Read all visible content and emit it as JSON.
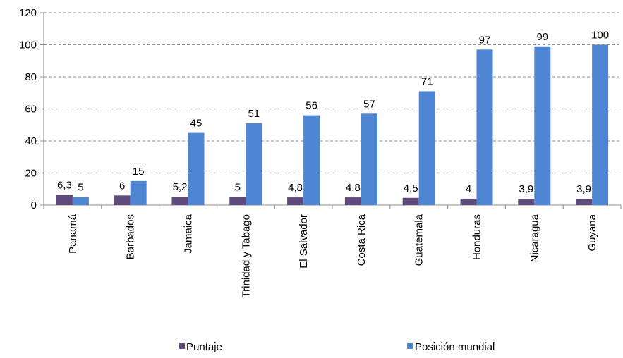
{
  "chart_data": {
    "type": "bar",
    "title": "",
    "xlabel": "",
    "ylabel": "",
    "ylim": [
      0,
      120
    ],
    "yticks": [
      0,
      20,
      40,
      60,
      80,
      100,
      120
    ],
    "grid": true,
    "legend_position": "bottom",
    "categories": [
      "Panamá",
      "Barbados",
      "Jamaica",
      "Trinidad y Tabago",
      "El Salvador",
      "Costa Rica",
      "Guatemala",
      "Honduras",
      "Nicaragua",
      "Guyana"
    ],
    "series": [
      {
        "name": "Puntaje",
        "color": "#604a7b",
        "values": [
          6.3,
          6,
          5.2,
          5,
          4.8,
          4.8,
          4.5,
          4,
          3.9,
          3.9
        ],
        "labels": [
          "6,3",
          "6",
          "5,2",
          "5",
          "4,8",
          "4,8",
          "4,5",
          "4",
          "3,9",
          "3,9"
        ]
      },
      {
        "name": "Posición mundial",
        "color": "#4f86d4",
        "values": [
          5,
          15,
          45,
          51,
          56,
          57,
          71,
          97,
          99,
          100
        ],
        "labels": [
          "5",
          "15",
          "45",
          "51",
          "56",
          "57",
          "71",
          "97",
          "99",
          "100"
        ]
      }
    ]
  }
}
